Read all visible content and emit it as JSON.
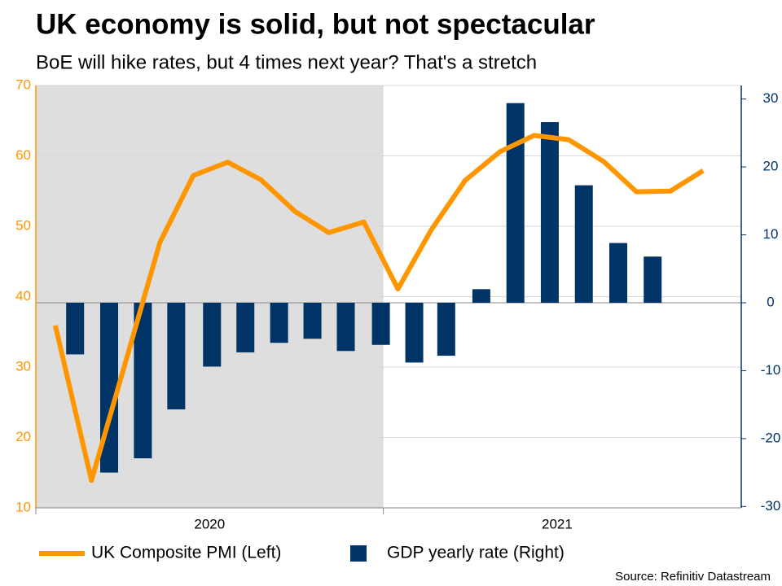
{
  "chart_data": {
    "type": "combo",
    "title": "UK economy is solid, but not spectacular",
    "subtitle": "BoE will hike rates, but 4 times next year? That's a stretch",
    "source": "Source: Refinitiv Datastream",
    "xlim": [
      2020,
      2022.03
    ],
    "xticks": [
      2020,
      2021
    ],
    "ylim": [
      10,
      70
    ],
    "yticks": [
      10,
      20,
      30,
      40,
      50,
      60,
      70
    ],
    "y2lim": [
      -30.2,
      32
    ],
    "y2ticks": [
      -30,
      -20,
      -10,
      0,
      10,
      20,
      30
    ],
    "grid": true,
    "shaded_x": [
      2020,
      2021
    ],
    "shade_color": "#dedede",
    "series": [
      {
        "name": "UK Composite PMI (Left)",
        "type": "line",
        "color": "#ff9600",
        "x": [
          2020.056,
          2020.16,
          2020.258,
          2020.357,
          2020.453,
          2020.552,
          2020.648,
          2020.746,
          2020.843,
          2020.944,
          2021.042,
          2021.138,
          2021.235,
          2021.336,
          2021.434,
          2021.533,
          2021.634,
          2021.728,
          2021.826,
          2021.92
        ],
        "values": [
          35.9,
          13.9,
          30.7,
          47.7,
          57.2,
          59.1,
          56.6,
          52.1,
          49.1,
          50.6,
          41.1,
          49.5,
          56.5,
          60.6,
          62.9,
          62.3,
          59.2,
          54.9,
          55.0,
          57.9
        ]
      },
      {
        "name": "GDP yearly rate (Right)",
        "type": "bar",
        "axis": "y2",
        "color": "#003366",
        "x": [
          2020.113,
          2020.211,
          2020.308,
          2020.404,
          2020.507,
          2020.603,
          2020.7,
          2020.796,
          2020.892,
          2020.993,
          2021.089,
          2021.181,
          2021.282,
          2021.38,
          2021.479,
          2021.577,
          2021.676,
          2021.775
        ],
        "values": [
          -7.6,
          -25.0,
          -22.9,
          -15.7,
          -9.4,
          -7.3,
          -5.9,
          -5.3,
          -7.1,
          -6.2,
          -8.8,
          -7.8,
          2.0,
          29.4,
          26.6,
          17.3,
          8.8,
          6.8
        ]
      }
    ]
  }
}
